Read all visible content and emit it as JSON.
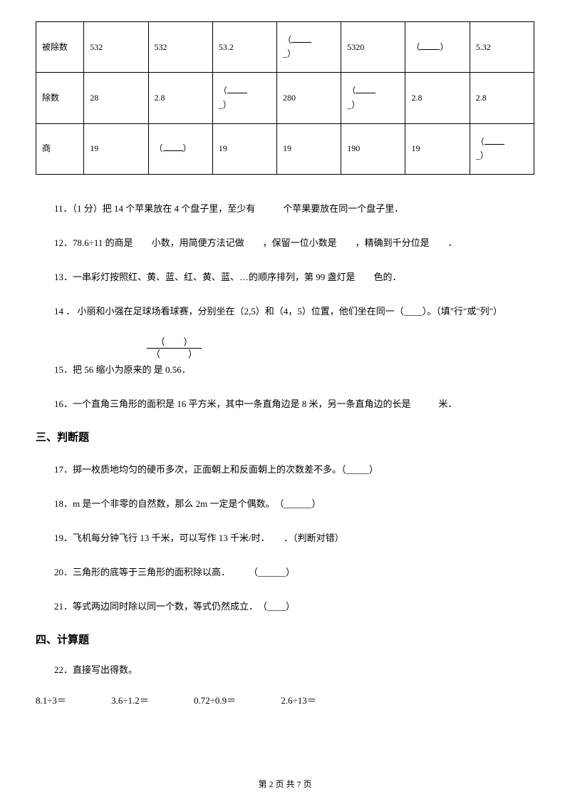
{
  "table": {
    "rows": [
      {
        "label": "被除数",
        "cells": [
          "532",
          "532",
          "53.2",
          "blank",
          "5320",
          "blank",
          "5.32"
        ]
      },
      {
        "label": "除数",
        "cells": [
          "28",
          "2.8",
          "blank",
          "280",
          "blank",
          "2.8",
          "2.8"
        ]
      },
      {
        "label": "商",
        "cells": [
          "19",
          "blank",
          "19",
          "19",
          "190",
          "19",
          "blank"
        ]
      }
    ]
  },
  "questions": {
    "q11": "11．（1 分）把 14 个苹果放在 4 个盘子里，至少有　　　个苹果要放在同一个盘子里．",
    "q12": "12．78.6÷11 的商是　　小数，用简便方法记做　　，保留一位小数是　　，精确到千分位是　　．",
    "q13": "13．一串彩灯按照红、黄、蓝、红、黄、蓝、…的顺序排列，第 99 盏灯是　　色的．",
    "q14": "14 ． 小丽和小强在足球场看球赛，分别坐在（2,5）和（4，5）位置，他们坐在同一（____）。（填\"行\"或\"列\"）",
    "q15_pre": "15．把 56 缩小为原来的",
    "q15_frac_num": "（　　）",
    "q15_frac_den": "（　　　）",
    "q15_post": "是 0.56．",
    "q16": "16．一个直角三角形的面积是 16 平方米，其中一条直角边是 8 米，另一条直角边的长是　　　米．"
  },
  "section3": "三、判断题",
  "judge": {
    "q17": "17．掷一枚质地均匀的硬币多次，正面朝上和反面朝上的次数差不多。（_____）",
    "q18": "18．m 是一个非零的自然数，那么 2m 一定是个偶数。　（______）",
    "q19": "19．飞机每分钟飞行 13 千米，可以写作 13 千米/时．　　．（判断对错）",
    "q20": "20．三角形的底等于三角形的面积除以高．　　　（______）",
    "q21": "21．等式两边同时除以同一个数，等式仍然成立．　（____）"
  },
  "section4": "四、计算题",
  "calc": {
    "q22": "22．直接写出得数。",
    "items": [
      "8.1÷3＝",
      "3.6÷1.2＝",
      "0.72÷0.9＝",
      "2.6÷13＝"
    ]
  },
  "footer": "第 2 页 共 7 页"
}
